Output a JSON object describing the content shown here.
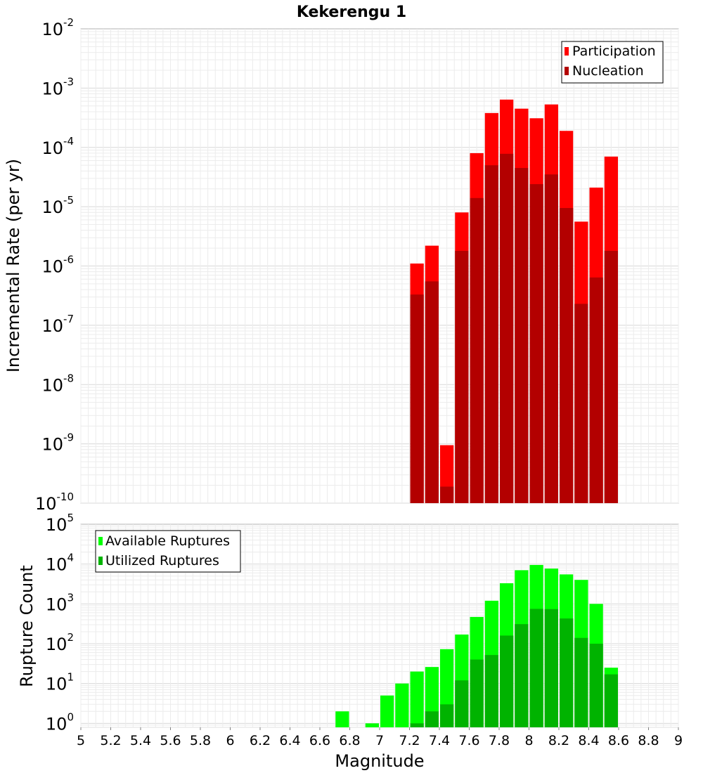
{
  "chart_data": [
    {
      "type": "bar",
      "title": "Kekerengu 1",
      "xlabel": "",
      "ylabel": "Incremental Rate (per yr)",
      "y_scale": "log",
      "ylim_exponents": [
        -10,
        -2
      ],
      "xlim": [
        5,
        9
      ],
      "bin_width": 0.1,
      "grid": true,
      "legend_position": "top-right",
      "series": [
        {
          "name": "Participation",
          "color": "#ff0000",
          "x": [
            7.25,
            7.35,
            7.45,
            7.55,
            7.65,
            7.75,
            7.85,
            7.95,
            8.05,
            8.15,
            8.25,
            8.35,
            8.45,
            8.55
          ],
          "values": [
            1.1e-06,
            2.2e-06,
            9.5e-10,
            8e-06,
            8e-05,
            0.00038,
            0.00064,
            0.00045,
            0.00031,
            0.00053,
            0.00019,
            5.6e-06,
            2.1e-05,
            7e-05
          ]
        },
        {
          "name": "Nucleation",
          "color": "#b30000",
          "x": [
            7.25,
            7.35,
            7.45,
            7.55,
            7.65,
            7.75,
            7.85,
            7.95,
            8.05,
            8.15,
            8.25,
            8.35,
            8.45,
            8.55
          ],
          "values": [
            3.3e-07,
            5.5e-07,
            1.9e-10,
            1.8e-06,
            1.4e-05,
            5e-05,
            7.8e-05,
            4.5e-05,
            2.4e-05,
            3.5e-05,
            9.5e-06,
            2.3e-07,
            6.4e-07,
            1.8e-06
          ]
        }
      ]
    },
    {
      "type": "bar",
      "title": "",
      "xlabel": "Magnitude",
      "ylabel": "Rupture Count",
      "y_scale": "log",
      "ylim_exponents": [
        -0.1,
        5
      ],
      "xlim": [
        5,
        9
      ],
      "bin_width": 0.1,
      "grid": true,
      "legend_position": "top-left",
      "x_ticks": [
        "5",
        "5.2",
        "5.4",
        "5.6",
        "5.8",
        "6",
        "6.2",
        "6.4",
        "6.6",
        "6.8",
        "7",
        "7.2",
        "7.4",
        "7.6",
        "7.8",
        "8",
        "8.2",
        "8.4",
        "8.6",
        "8.8",
        "9"
      ],
      "series": [
        {
          "name": "Available Ruptures",
          "color": "#00ff00",
          "x": [
            6.75,
            6.95,
            7.05,
            7.15,
            7.25,
            7.35,
            7.45,
            7.55,
            7.65,
            7.75,
            7.85,
            7.95,
            8.05,
            8.15,
            8.25,
            8.35,
            8.45,
            8.55
          ],
          "values": [
            2,
            1,
            5,
            10,
            20,
            26,
            73,
            170,
            470,
            1200,
            3300,
            7000,
            9500,
            7700,
            5500,
            4000,
            1000,
            25
          ]
        },
        {
          "name": "Utilized Ruptures",
          "color": "#00b300",
          "x": [
            7.25,
            7.35,
            7.45,
            7.55,
            7.65,
            7.75,
            7.85,
            7.95,
            8.05,
            8.15,
            8.25,
            8.35,
            8.45,
            8.55
          ],
          "values": [
            1,
            2,
            3,
            12,
            40,
            52,
            160,
            310,
            750,
            740,
            430,
            140,
            100,
            17
          ]
        }
      ]
    }
  ]
}
